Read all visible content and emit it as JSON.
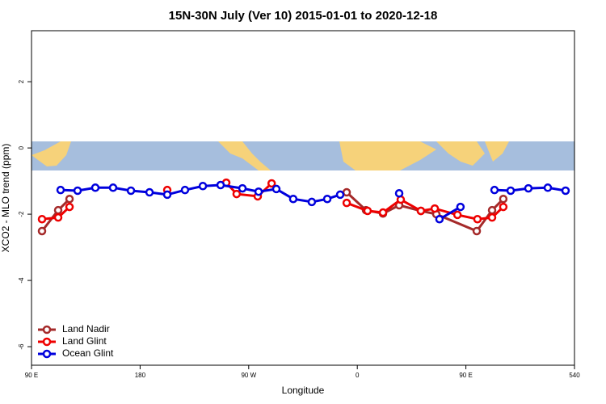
{
  "chart_data": {
    "type": "line",
    "title": "15N-30N July (Ver 10)   2015-01-01 to 2020-12-18",
    "x_label": "Longitude",
    "y_label": "XCO2 - MLO trend (ppm)",
    "xlim": [
      90,
      540
    ],
    "ylim": [
      -6.56,
      3.54
    ],
    "xticks": [
      {
        "value": 90,
        "label": "90 E"
      },
      180,
      {
        "value": 270,
        "label": "90 W"
      },
      {
        "value": 360,
        "label": "0"
      },
      {
        "value": 450,
        "label": "90 E"
      },
      540
    ],
    "yticks": [
      -6,
      -4,
      -2,
      0,
      2
    ],
    "legend": "bottom-left",
    "series": [
      {
        "name": "Land Nadir",
        "color": "#a52a2a",
        "x": [
          98.7,
          112.1,
          121.5,
          null,
          351.2,
          367.2,
          381.3,
          394.7,
          412.7,
          425.5,
          459.0,
          471.7,
          481.0
        ],
        "values": [
          -2.51,
          -1.88,
          -1.54,
          null,
          -1.34,
          -1.88,
          -1.98,
          -1.73,
          -1.9,
          -2.0,
          -2.51,
          -1.88,
          -1.54
        ]
      },
      {
        "name": "Land Glint",
        "color": "#ee0000",
        "x": [
          98.7,
          112.1,
          121.5,
          null,
          202.5,
          null,
          251.4,
          260.0,
          277.5,
          289.0,
          null,
          351.2,
          368.5,
          381.3,
          396.0,
          412.7,
          424.2,
          443.0,
          459.6,
          471.7,
          481.0
        ],
        "values": [
          -2.15,
          -2.1,
          -1.78,
          null,
          -1.27,
          null,
          -1.05,
          -1.39,
          -1.46,
          -1.07,
          null,
          -1.66,
          -1.9,
          -1.95,
          -1.56,
          -1.9,
          -1.83,
          -2.02,
          -2.15,
          -2.1,
          -1.78
        ]
      },
      {
        "name": "Ocean Glint",
        "color": "#0000dd",
        "x": [
          114.1,
          128.2,
          142.9,
          157.6,
          172.4,
          187.8,
          202.5,
          217.2,
          232.0,
          246.7,
          264.8,
          278.2,
          292.9,
          306.9,
          322.3,
          335.1,
          345.8,
          null,
          394.7,
          null,
          428.1,
          445.5,
          null,
          473.7,
          487.1,
          501.8,
          517.9,
          532.6
        ],
        "values": [
          -1.27,
          -1.29,
          -1.2,
          -1.2,
          -1.29,
          -1.34,
          -1.41,
          -1.27,
          -1.15,
          -1.12,
          -1.22,
          -1.32,
          -1.24,
          -1.54,
          -1.63,
          -1.54,
          -1.41,
          null,
          -1.37,
          null,
          -2.15,
          -1.78,
          null,
          -1.27,
          -1.29,
          -1.22,
          -1.2,
          -1.29
        ]
      }
    ]
  }
}
